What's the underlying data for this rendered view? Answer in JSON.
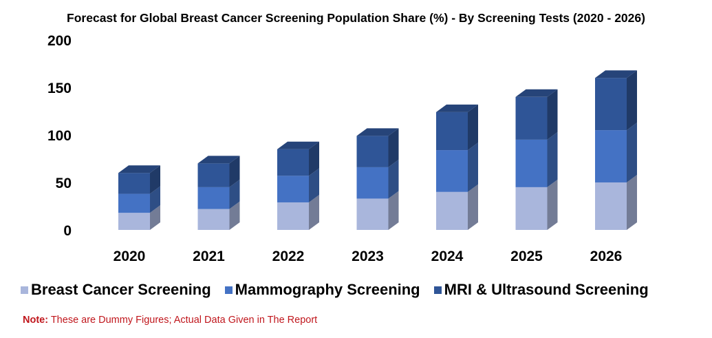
{
  "chart_data": {
    "type": "bar",
    "stacked": true,
    "style": "3d",
    "title": "Forecast for Global Breast Cancer Screening Population Share (%) - By Screening Tests (2020 - 2026)",
    "categories": [
      "2020",
      "2021",
      "2022",
      "2023",
      "2024",
      "2025",
      "2026"
    ],
    "series": [
      {
        "name": "Breast Cancer Screening",
        "color": "#a9b6dc",
        "values": [
          18,
          22,
          29,
          33,
          40,
          45,
          50
        ]
      },
      {
        "name": "Mammography Screening",
        "color": "#4472c4",
        "values": [
          20,
          23,
          28,
          33,
          44,
          50,
          55
        ]
      },
      {
        "name": "MRI & Ultrasound Screening",
        "color": "#2f5597",
        "values": [
          22,
          25,
          28,
          33,
          40,
          45,
          55
        ]
      }
    ],
    "ylim": [
      0,
      200
    ],
    "yticks": [
      "0",
      "50",
      "100",
      "150",
      "200"
    ],
    "xlabel": "",
    "ylabel": "",
    "legend_position": "bottom"
  },
  "note": {
    "label": "Note:",
    "text": " These are Dummy Figures; Actual Data Given in The Report"
  }
}
